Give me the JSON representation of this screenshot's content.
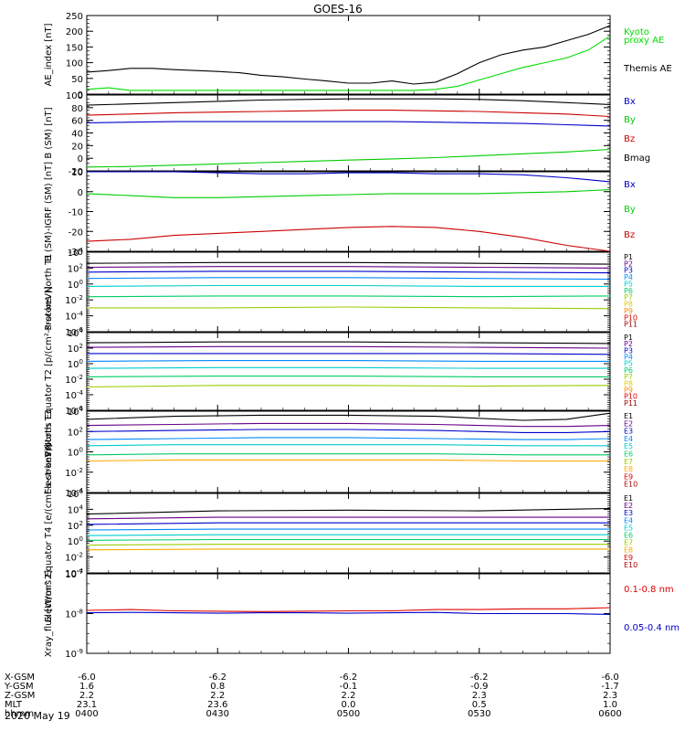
{
  "title": "GOES-16",
  "date_label": "2020 May 19",
  "chart_data": [
    {
      "type": "line",
      "ylabel": "AE_index [nT]",
      "ylim": [
        0,
        250
      ],
      "yticks": [
        "0",
        "50",
        "100",
        "150",
        "200",
        "250"
      ],
      "legend": [
        {
          "text": "Kyoto",
          "color": "#00dd00"
        },
        {
          "text": "proxy AE",
          "color": "#00dd00"
        },
        {
          "text": "Themis AE",
          "color": "#000000"
        }
      ],
      "x": [
        0,
        5,
        10,
        15,
        20,
        25,
        30,
        35,
        40,
        45,
        50,
        55,
        60,
        65,
        70,
        75,
        80,
        85,
        90,
        95,
        100,
        105,
        110,
        115,
        120
      ],
      "series": [
        {
          "color": "#000000",
          "values": [
            70,
            75,
            82,
            82,
            78,
            75,
            72,
            68,
            60,
            55,
            48,
            42,
            35,
            35,
            42,
            32,
            38,
            65,
            100,
            125,
            140,
            150,
            170,
            190,
            218
          ]
        },
        {
          "color": "#00dd00",
          "values": [
            15,
            20,
            12,
            12,
            12,
            12,
            12,
            12,
            12,
            12,
            12,
            12,
            12,
            12,
            12,
            12,
            15,
            25,
            45,
            65,
            85,
            100,
            115,
            140,
            185
          ]
        }
      ]
    },
    {
      "type": "line",
      "ylabel": "B (SM) [nT]",
      "ylim": [
        -20,
        100
      ],
      "yticks": [
        "-20",
        "0",
        "20",
        "40",
        "60",
        "80",
        "100"
      ],
      "legend": [
        {
          "text": "Bx",
          "color": "#0000cc"
        },
        {
          "text": "By",
          "color": "#00cc00"
        },
        {
          "text": "Bz",
          "color": "#cc0000"
        },
        {
          "text": "Bmag",
          "color": "#000000"
        }
      ],
      "x": [
        0,
        10,
        20,
        30,
        40,
        50,
        60,
        70,
        80,
        90,
        100,
        110,
        120
      ],
      "series": [
        {
          "color": "#000000",
          "values": [
            84,
            86,
            88,
            90,
            92,
            93,
            94,
            94,
            94,
            93,
            91,
            88,
            85
          ]
        },
        {
          "color": "#cc0000",
          "values": [
            68,
            70,
            72,
            73,
            74,
            75,
            76,
            76,
            75,
            74,
            72,
            70,
            66
          ]
        },
        {
          "color": "#0000cc",
          "values": [
            56,
            57,
            58,
            58,
            58,
            58,
            58,
            58,
            57,
            56,
            55,
            53,
            51
          ]
        },
        {
          "color": "#00cc00",
          "values": [
            -14,
            -13,
            -11,
            -9,
            -7,
            -5,
            -3,
            -1,
            1,
            4,
            7,
            10,
            14
          ]
        }
      ]
    },
    {
      "type": "line",
      "ylabel": "B (SM)-IGRF (SM) [nT]",
      "ylim": [
        -30,
        10
      ],
      "yticks": [
        "-30",
        "-20",
        "-10",
        "0",
        "10"
      ],
      "legend": [
        {
          "text": "Bx",
          "color": "#0000cc"
        },
        {
          "text": "By",
          "color": "#00cc00"
        },
        {
          "text": "Bz",
          "color": "#cc0000"
        }
      ],
      "x": [
        0,
        10,
        20,
        30,
        40,
        50,
        60,
        70,
        80,
        90,
        100,
        110,
        120
      ],
      "series": [
        {
          "color": "#0000cc",
          "values": [
            10,
            10,
            10,
            9.5,
            9,
            9,
            9.5,
            9.5,
            9,
            9,
            8.5,
            7,
            5
          ]
        },
        {
          "color": "#00cc00",
          "values": [
            -1,
            -2,
            -3,
            -3,
            -2.5,
            -2,
            -1.5,
            -1,
            -1,
            -1,
            -0.5,
            0,
            1
          ]
        },
        {
          "color": "#cc0000",
          "values": [
            -25,
            -24,
            -22,
            -21,
            -20,
            -19,
            -18,
            -17.5,
            -18,
            -20,
            -23,
            -27,
            -30
          ]
        }
      ]
    },
    {
      "type": "line",
      "ylabel": "Protons North T1",
      "log": true,
      "ylim": [
        -6,
        4
      ],
      "yticks": [
        "10-6",
        "10-4",
        "10-2",
        "100",
        "102",
        "104"
      ],
      "ytick_exps": [
        -6,
        -4,
        -2,
        0,
        2,
        4
      ],
      "legend": [
        {
          "text": "P1",
          "color": "#000000"
        },
        {
          "text": "P2",
          "color": "#660088"
        },
        {
          "text": "P3",
          "color": "#0000cc"
        },
        {
          "text": "P4",
          "color": "#0088ff"
        },
        {
          "text": "P5",
          "color": "#00cccc"
        },
        {
          "text": "P6",
          "color": "#00cc66"
        },
        {
          "text": "P7",
          "color": "#99cc00"
        },
        {
          "text": "P8",
          "color": "#ddcc00"
        },
        {
          "text": "P9",
          "color": "#ff8800"
        },
        {
          "text": "P10",
          "color": "#dd0000"
        },
        {
          "text": "P11",
          "color": "#990000"
        }
      ],
      "x": [
        0,
        30,
        60,
        90,
        120
      ],
      "series": [
        {
          "color": "#000000",
          "values": [
            2.6,
            2.7,
            2.7,
            2.6,
            2.5
          ]
        },
        {
          "color": "#660088",
          "values": [
            2.1,
            2.2,
            2.2,
            2.1,
            2.0
          ]
        },
        {
          "color": "#0000cc",
          "values": [
            1.5,
            1.6,
            1.6,
            1.5,
            1.4
          ]
        },
        {
          "color": "#0088ff",
          "values": [
            0.7,
            0.8,
            0.8,
            0.7,
            0.6
          ]
        },
        {
          "color": "#00cccc",
          "values": [
            -0.3,
            -0.2,
            -0.2,
            -0.3,
            -0.3
          ]
        },
        {
          "color": "#00cc66",
          "values": [
            -1.6,
            -1.5,
            -1.5,
            -1.6,
            -1.5
          ]
        },
        {
          "color": "#99cc00",
          "values": [
            -3.0,
            -3.0,
            -2.9,
            -3.0,
            -3.1
          ]
        }
      ]
    },
    {
      "type": "line",
      "ylabel": "Protons Equator T2 [p/(cm²-s-sr-keV)]",
      "log": true,
      "ylim": [
        -6,
        4
      ],
      "yticks": [
        "10-6",
        "10-4",
        "10-2",
        "100",
        "102",
        "104"
      ],
      "ytick_exps": [
        -6,
        -4,
        -2,
        0,
        2,
        4
      ],
      "legend": [
        {
          "text": "P1",
          "color": "#000000"
        },
        {
          "text": "P2",
          "color": "#660088"
        },
        {
          "text": "P3",
          "color": "#0000cc"
        },
        {
          "text": "P4",
          "color": "#0088ff"
        },
        {
          "text": "P5",
          "color": "#00cccc"
        },
        {
          "text": "P6",
          "color": "#00cc66"
        },
        {
          "text": "P7",
          "color": "#99cc00"
        },
        {
          "text": "P8",
          "color": "#ddcc00"
        },
        {
          "text": "P9",
          "color": "#ff8800"
        },
        {
          "text": "P10",
          "color": "#dd0000"
        },
        {
          "text": "P11",
          "color": "#990000"
        }
      ],
      "x": [
        0,
        30,
        60,
        90,
        120
      ],
      "series": [
        {
          "color": "#000000",
          "values": [
            2.7,
            2.8,
            2.8,
            2.7,
            2.6
          ]
        },
        {
          "color": "#660088",
          "values": [
            2.1,
            2.2,
            2.2,
            2.1,
            2.0
          ]
        },
        {
          "color": "#0000cc",
          "values": [
            1.3,
            1.3,
            1.3,
            1.3,
            1.2
          ]
        },
        {
          "color": "#0088ff",
          "values": [
            0.3,
            0.4,
            0.4,
            0.3,
            0.3
          ]
        },
        {
          "color": "#00cccc",
          "values": [
            -0.6,
            -0.5,
            -0.5,
            -0.6,
            -0.6
          ]
        },
        {
          "color": "#00cc66",
          "values": [
            -1.7,
            -1.6,
            -1.6,
            -1.7,
            -1.7
          ]
        },
        {
          "color": "#99cc00",
          "values": [
            -3.0,
            -2.8,
            -2.8,
            -2.9,
            -2.8
          ]
        }
      ]
    },
    {
      "type": "line",
      "ylabel": "Electrons North T3",
      "log": true,
      "ylim": [
        -4,
        4
      ],
      "yticks": [
        "10-4",
        "10-2",
        "100",
        "102",
        "104"
      ],
      "ytick_exps": [
        -4,
        -2,
        0,
        2,
        4
      ],
      "legend": [
        {
          "text": "E1",
          "color": "#000000"
        },
        {
          "text": "E2",
          "color": "#660088"
        },
        {
          "text": "E3",
          "color": "#0000cc"
        },
        {
          "text": "E4",
          "color": "#0088ff"
        },
        {
          "text": "E5",
          "color": "#00cccc"
        },
        {
          "text": "E6",
          "color": "#00cc66"
        },
        {
          "text": "E7",
          "color": "#99cc00"
        },
        {
          "text": "E8",
          "color": "#ffaa00"
        },
        {
          "text": "E9",
          "color": "#dd0000"
        },
        {
          "text": "E10",
          "color": "#aa0000"
        }
      ],
      "x": [
        0,
        20,
        40,
        60,
        80,
        100,
        110,
        120
      ],
      "series": [
        {
          "color": "#000000",
          "values": [
            3.2,
            3.5,
            3.6,
            3.6,
            3.5,
            3.1,
            3.2,
            3.8
          ]
        },
        {
          "color": "#660088",
          "values": [
            2.6,
            2.7,
            2.8,
            2.8,
            2.7,
            2.5,
            2.5,
            2.6
          ]
        },
        {
          "color": "#0000cc",
          "values": [
            2.0,
            2.1,
            2.2,
            2.2,
            2.1,
            1.9,
            1.9,
            2.0
          ]
        },
        {
          "color": "#0088ff",
          "values": [
            1.2,
            1.3,
            1.4,
            1.4,
            1.3,
            1.2,
            1.2,
            1.3
          ]
        },
        {
          "color": "#00cccc",
          "values": [
            0.6,
            0.7,
            0.7,
            0.7,
            0.7,
            0.6,
            0.6,
            0.6
          ]
        },
        {
          "color": "#00cc66",
          "values": [
            -0.3,
            -0.2,
            -0.2,
            -0.2,
            -0.2,
            -0.3,
            -0.3,
            -0.3
          ]
        },
        {
          "color": "#ffaa00",
          "values": [
            -0.9,
            -0.8,
            -0.8,
            -0.8,
            -0.8,
            -0.9,
            -0.9,
            -0.9
          ]
        }
      ]
    },
    {
      "type": "line",
      "ylabel": "Electrons Equator T4 [e/(cm²-s-sr-keV)]",
      "log": true,
      "ylim": [
        -4,
        6
      ],
      "yticks": [
        "10-4",
        "10-2",
        "100",
        "102",
        "104",
        "106"
      ],
      "ytick_exps": [
        -4,
        -2,
        0,
        2,
        4,
        6
      ],
      "legend": [
        {
          "text": "E1",
          "color": "#000000"
        },
        {
          "text": "E2",
          "color": "#660088"
        },
        {
          "text": "E3",
          "color": "#0000cc"
        },
        {
          "text": "E4",
          "color": "#0088ff"
        },
        {
          "text": "E5",
          "color": "#00cccc"
        },
        {
          "text": "E6",
          "color": "#00cc66"
        },
        {
          "text": "E7",
          "color": "#99cc00"
        },
        {
          "text": "E8",
          "color": "#ffaa00"
        },
        {
          "text": "E9",
          "color": "#dd0000"
        },
        {
          "text": "E10",
          "color": "#aa0000"
        }
      ],
      "x": [
        0,
        30,
        60,
        90,
        120
      ],
      "series": [
        {
          "color": "#000000",
          "values": [
            3.4,
            3.8,
            3.9,
            3.8,
            4.1
          ]
        },
        {
          "color": "#660088",
          "values": [
            2.8,
            3.0,
            3.0,
            3.0,
            3.0
          ]
        },
        {
          "color": "#0000cc",
          "values": [
            2.1,
            2.3,
            2.3,
            2.3,
            2.3
          ]
        },
        {
          "color": "#0088ff",
          "values": [
            1.4,
            1.5,
            1.5,
            1.5,
            1.5
          ]
        },
        {
          "color": "#00cccc",
          "values": [
            0.7,
            0.8,
            0.8,
            0.8,
            0.8
          ]
        },
        {
          "color": "#00cc66",
          "values": [
            0.1,
            0.2,
            0.2,
            0.2,
            0.2
          ]
        },
        {
          "color": "#99cc00",
          "values": [
            -0.5,
            -0.4,
            -0.4,
            -0.4,
            -0.4
          ]
        },
        {
          "color": "#ffaa00",
          "values": [
            -1.1,
            -1.0,
            -1.0,
            -1.0,
            -1.0
          ]
        }
      ]
    },
    {
      "type": "line",
      "ylabel": "Xray_flux [W/m^2]",
      "log": true,
      "ylim": [
        -9,
        -7
      ],
      "yticks": [
        "10-9",
        "10-8",
        "10-7"
      ],
      "ytick_exps": [
        -9,
        -8,
        -7
      ],
      "legend": [
        {
          "text": "0.1-0.8 nm",
          "color": "#dd0000"
        },
        {
          "text": "0.05-0.4 nm",
          "color": "#0000cc"
        }
      ],
      "x": [
        0,
        10,
        20,
        30,
        40,
        50,
        60,
        70,
        80,
        90,
        100,
        110,
        120
      ],
      "series": [
        {
          "color": "#dd0000",
          "values": [
            -7.92,
            -7.9,
            -7.93,
            -7.94,
            -7.95,
            -7.94,
            -7.93,
            -7.93,
            -7.9,
            -7.9,
            -7.88,
            -7.88,
            -7.85
          ]
        },
        {
          "color": "#0000cc",
          "values": [
            -7.98,
            -7.97,
            -7.98,
            -7.99,
            -7.98,
            -7.98,
            -7.99,
            -7.98,
            -7.97,
            -8.0,
            -8.0,
            -8.0,
            -8.02
          ]
        }
      ]
    }
  ],
  "xaxis": {
    "row_labels": [
      "X-GSM",
      "Y-GSM",
      "Z-GSM",
      "MLT",
      "hhmm"
    ],
    "ticks": [
      {
        "x": 0,
        "vals": [
          "-6.0",
          "1.6",
          "2.2",
          "23.1",
          "0400"
        ]
      },
      {
        "x": 30,
        "vals": [
          "-6.2",
          "0.8",
          "2.2",
          "23.6",
          "0430"
        ]
      },
      {
        "x": 60,
        "vals": [
          "-6.2",
          "-0.1",
          "2.2",
          "0.0",
          "0500"
        ]
      },
      {
        "x": 90,
        "vals": [
          "-6.2",
          "-0.9",
          "2.3",
          "0.5",
          "0530"
        ]
      },
      {
        "x": 120,
        "vals": [
          "-6.0",
          "-1.7",
          "2.3",
          "1.0",
          "0600"
        ]
      }
    ]
  }
}
